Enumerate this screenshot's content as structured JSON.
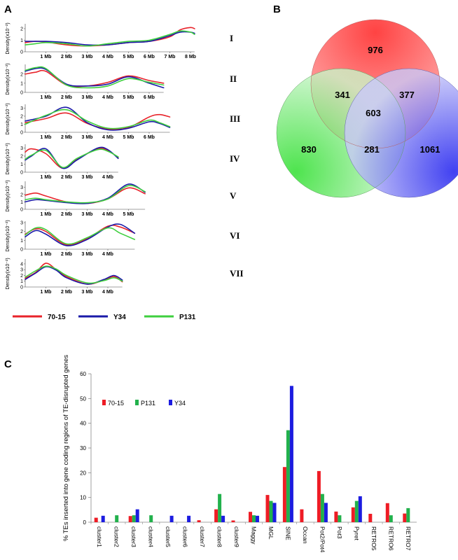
{
  "panel_labels": {
    "a": "A",
    "b": "B",
    "c": "C"
  },
  "colors": {
    "s70_15": "#e8232a",
    "y34": "#1a1aa8",
    "p131": "#3ecf3e",
    "bar70_15": "#ee1c25",
    "barP131": "#22b14c",
    "barY34": "#1c1ce0"
  },
  "legend_a": [
    {
      "label": "70-15",
      "color": "#e8232a"
    },
    {
      "label": "Y34",
      "color": "#1a1aa8"
    },
    {
      "label": "P131",
      "color": "#3ecf3e"
    }
  ],
  "chart_data": [
    {
      "type": "line",
      "panel": "A",
      "ylabel": "Density(x10⁻²)",
      "chromosomes": [
        {
          "roman": "I",
          "xmax_mb": 8.2,
          "yticks": [
            "2",
            "1",
            "0"
          ],
          "ymax": 2.3,
          "xticks": [
            "1 Mb",
            "2 Mb",
            "3 Mb",
            "4 Mb",
            "5 Mb",
            "6 Mb",
            "7 Mb",
            "8 Mb"
          ],
          "series": [
            {
              "name": "70-15",
              "x": [
                0,
                0.5,
                1,
                2,
                3,
                4,
                5,
                6,
                7,
                7.5,
                8,
                8.2
              ],
              "y": [
                0.8,
                0.9,
                0.85,
                0.6,
                0.5,
                0.6,
                0.8,
                0.9,
                1.3,
                1.9,
                2.1,
                2.0
              ]
            },
            {
              "name": "Y34",
              "x": [
                0,
                0.5,
                1,
                2,
                3,
                4,
                5,
                6,
                7,
                7.5,
                8,
                8.2
              ],
              "y": [
                0.9,
                0.9,
                0.9,
                0.8,
                0.6,
                0.6,
                0.8,
                0.9,
                1.4,
                1.7,
                1.7,
                1.6
              ]
            },
            {
              "name": "P131",
              "x": [
                0,
                0.5,
                1,
                2,
                3,
                4,
                5,
                6,
                7,
                7.5,
                8,
                8.2
              ],
              "y": [
                0.6,
                0.7,
                0.8,
                0.7,
                0.5,
                0.7,
                0.9,
                1.0,
                1.5,
                1.8,
                1.7,
                1.5
              ]
            }
          ]
        },
        {
          "roman": "II",
          "xmax_mb": 6.7,
          "yticks": [
            "2",
            "1",
            "0"
          ],
          "ymax": 2.9,
          "xticks": [
            "1 Mb",
            "2 Mb",
            "3 Mb",
            "4 Mb",
            "5 Mb",
            "6 Mb"
          ],
          "series": [
            {
              "name": "70-15",
              "x": [
                0,
                0.5,
                1,
                2,
                3,
                4,
                5,
                6,
                6.7
              ],
              "y": [
                2.0,
                2.2,
                2.3,
                0.8,
                0.7,
                1.1,
                1.8,
                1.3,
                1.0
              ]
            },
            {
              "name": "Y34",
              "x": [
                0,
                0.5,
                1,
                2,
                3,
                4,
                5,
                6,
                6.7
              ],
              "y": [
                2.3,
                2.6,
                2.5,
                0.9,
                0.7,
                0.9,
                1.7,
                1.0,
                0.5
              ]
            },
            {
              "name": "P131",
              "x": [
                0,
                0.5,
                1,
                2,
                3,
                4,
                5,
                6,
                6.7
              ],
              "y": [
                2.4,
                2.7,
                2.6,
                0.8,
                0.5,
                0.7,
                1.5,
                1.1,
                0.8
              ]
            }
          ]
        },
        {
          "roman": "III",
          "xmax_mb": 7.0,
          "yticks": [
            "3",
            "2",
            "1",
            "0"
          ],
          "ymax": 3.3,
          "xticks": [
            "1 Mb",
            "2 Mb",
            "3 Mb",
            "4 Mb",
            "5 Mb",
            "6 Mb"
          ],
          "series": [
            {
              "name": "70-15",
              "x": [
                0,
                1,
                2,
                3,
                4,
                5,
                6,
                6.5,
                7
              ],
              "y": [
                1.2,
                1.7,
                2.4,
                1.1,
                0.4,
                0.6,
                1.9,
                2.2,
                1.9
              ]
            },
            {
              "name": "Y34",
              "x": [
                0,
                1,
                2,
                3,
                4,
                5,
                6,
                6.5,
                7
              ],
              "y": [
                1.4,
                2.0,
                3.1,
                1.2,
                0.3,
                0.5,
                1.3,
                1.1,
                0.6
              ]
            },
            {
              "name": "P131",
              "x": [
                0,
                1,
                2,
                3,
                4,
                5,
                6,
                6.5,
                7
              ],
              "y": [
                1.0,
                2.1,
                2.8,
                1.4,
                0.5,
                0.7,
                1.5,
                1.2,
                0.7
              ]
            }
          ]
        },
        {
          "roman": "IV",
          "xmax_mb": 4.5,
          "yticks": [
            "3",
            "2",
            "1",
            "0"
          ],
          "ymax": 3.3,
          "xticks": [
            "1 Mb",
            "2 Mb",
            "3 Mb",
            "4 Mb"
          ],
          "series": [
            {
              "name": "70-15",
              "x": [
                0,
                0.3,
                1,
                1.8,
                2.5,
                3.5,
                4,
                4.5
              ],
              "y": [
                2.5,
                2.9,
                2.3,
                0.5,
                1.6,
                2.9,
                2.7,
                1.8
              ]
            },
            {
              "name": "Y34",
              "x": [
                0,
                0.3,
                1,
                1.8,
                2.5,
                3.5,
                4,
                4.5
              ],
              "y": [
                1.5,
                2.0,
                2.9,
                0.5,
                1.5,
                3.0,
                2.8,
                1.7
              ]
            },
            {
              "name": "P131",
              "x": [
                0,
                0.3,
                1,
                1.8,
                2.5,
                3.5,
                4,
                4.5
              ],
              "y": [
                1.6,
                2.1,
                2.7,
                0.6,
                1.7,
                2.8,
                2.6,
                1.9
              ]
            }
          ]
        },
        {
          "roman": "V",
          "xmax_mb": 5.8,
          "yticks": [
            "3",
            "2",
            "1",
            "0"
          ],
          "ymax": 3.6,
          "xticks": [
            "1 Mb",
            "2 Mb",
            "3 Mb",
            "4 Mb",
            "5 Mb"
          ],
          "series": [
            {
              "name": "70-15",
              "x": [
                0,
                0.5,
                1,
                2,
                3,
                4,
                5,
                5.8
              ],
              "y": [
                1.9,
                2.2,
                1.8,
                1.0,
                0.8,
                1.4,
                2.9,
                2.1
              ]
            },
            {
              "name": "Y34",
              "x": [
                0,
                0.5,
                1,
                2,
                3,
                4,
                5,
                5.8
              ],
              "y": [
                1.0,
                1.3,
                1.2,
                0.9,
                0.8,
                1.5,
                3.4,
                2.3
              ]
            },
            {
              "name": "P131",
              "x": [
                0,
                0.5,
                1,
                2,
                3,
                4,
                5,
                5.8
              ],
              "y": [
                1.3,
                1.5,
                1.3,
                1.0,
                0.9,
                1.4,
                3.2,
                2.4
              ]
            }
          ]
        },
        {
          "roman": "VI",
          "xmax_mb": 5.3,
          "yticks": [
            "3",
            "2",
            "1",
            "0"
          ],
          "ymax": 3.0,
          "xticks": [
            "1 Mb",
            "2 Mb",
            "3 Mb",
            "4 Mb"
          ],
          "series": [
            {
              "name": "70-15",
              "x": [
                0,
                0.5,
                1,
                2,
                3,
                4,
                4.6,
                5.3
              ],
              "y": [
                1.7,
                2.3,
                2.0,
                0.5,
                1.2,
                2.6,
                2.5,
                1.8
              ]
            },
            {
              "name": "Y34",
              "x": [
                0,
                0.5,
                1,
                2,
                3,
                4,
                4.6,
                5.3
              ],
              "y": [
                1.4,
                2.1,
                1.7,
                0.4,
                1.1,
                2.5,
                2.8,
                1.8
              ]
            },
            {
              "name": "P131",
              "x": [
                0,
                0.5,
                1,
                2,
                3,
                4,
                4.6,
                5.3
              ],
              "y": [
                1.6,
                2.4,
                2.2,
                0.6,
                1.3,
                2.4,
                1.8,
                1.1
              ]
            }
          ]
        },
        {
          "roman": "VII",
          "xmax_mb": 4.7,
          "yticks": [
            "4",
            "3",
            "2",
            "1",
            "0"
          ],
          "ymax": 4.6,
          "xticks": [
            "1 Mb",
            "2 Mb",
            "3 Mb",
            "4 Mb"
          ],
          "series": [
            {
              "name": "70-15",
              "x": [
                0,
                0.5,
                1,
                1.5,
                2,
                3,
                3.8,
                4.3,
                4.7
              ],
              "y": [
                1.5,
                2.5,
                4.1,
                3.0,
                1.8,
                0.5,
                1.2,
                1.8,
                0.9
              ]
            },
            {
              "name": "Y34",
              "x": [
                0,
                0.5,
                1,
                1.5,
                2,
                3,
                3.8,
                4.3,
                4.7
              ],
              "y": [
                1.3,
                2.4,
                3.5,
                2.9,
                1.6,
                0.5,
                1.3,
                2.0,
                1.2
              ]
            },
            {
              "name": "P131",
              "x": [
                0,
                0.5,
                1,
                1.5,
                2,
                3,
                3.8,
                4.3,
                4.7
              ],
              "y": [
                1.7,
                2.8,
                3.6,
                3.1,
                2.0,
                0.7,
                1.1,
                1.6,
                1.0
              ]
            }
          ]
        }
      ]
    },
    {
      "type": "venn",
      "panel": "B",
      "sets": [
        {
          "color": "#ff3333"
        },
        {
          "color": "#33dd33"
        },
        {
          "color": "#4444ee"
        }
      ],
      "regions": [
        {
          "id": "r-only",
          "value": "976"
        },
        {
          "id": "rg",
          "value": "341"
        },
        {
          "id": "rb",
          "value": "377"
        },
        {
          "id": "rgb",
          "value": "603"
        },
        {
          "id": "g-only",
          "value": "830"
        },
        {
          "id": "gb",
          "value": "281"
        },
        {
          "id": "b-only",
          "value": "1061"
        }
      ]
    },
    {
      "type": "bar",
      "panel": "C",
      "ylabel": "% TEs inserted into gene coding regions of TE-disrupted genes",
      "ylim": [
        0,
        60
      ],
      "yticks": [
        "0",
        "10",
        "20",
        "30",
        "40",
        "50",
        "60"
      ],
      "categories": [
        "cluster1",
        "cluster2",
        "cluster3",
        "cluster4",
        "cluster5",
        "cluster6",
        "cluster7",
        "cluster8",
        "cluster9",
        "Maggy",
        "MGL",
        "SINE",
        "Occan",
        "Pot2/Pot4",
        "Pot3",
        "Pyret",
        "RETRO5",
        "RETRO6",
        "RETRO7"
      ],
      "series": [
        {
          "name": "70-15",
          "values": [
            1.8,
            0,
            2.5,
            0,
            0,
            0,
            0.8,
            5.2,
            0.7,
            4.2,
            11.0,
            22.3,
            5.2,
            20.7,
            4.3,
            6.0,
            3.4,
            7.7,
            3.5
          ]
        },
        {
          "name": "P131",
          "values": [
            0,
            2.8,
            2.8,
            2.8,
            0,
            0,
            0,
            11.4,
            0,
            2.8,
            8.6,
            37.2,
            0,
            11.4,
            2.8,
            8.6,
            0,
            2.8,
            5.7
          ]
        },
        {
          "name": "Y34",
          "values": [
            2.6,
            0,
            5.2,
            0,
            2.6,
            2.6,
            0,
            2.6,
            0,
            2.6,
            7.8,
            55.1,
            0,
            7.8,
            0,
            10.5,
            0,
            0,
            0
          ]
        }
      ]
    }
  ]
}
